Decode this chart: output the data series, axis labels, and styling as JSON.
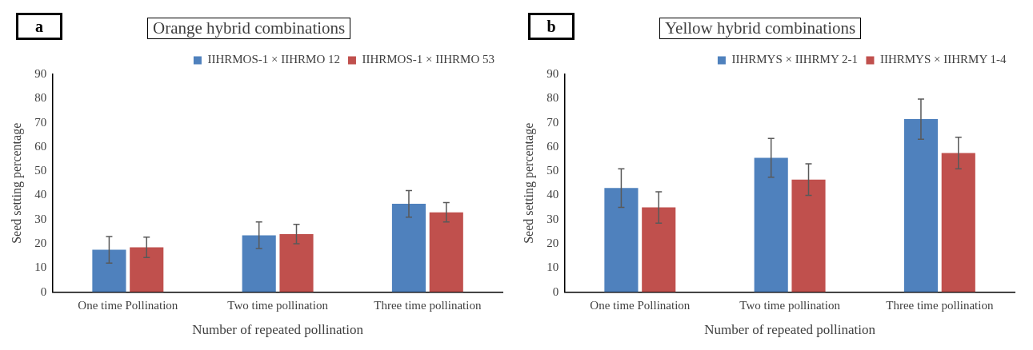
{
  "chart_data": [
    {
      "type": "bar",
      "title": "Orange hybrid combinations",
      "xlabel": "Number of repeated pollination",
      "ylabel": "Seed setting percentage",
      "annotations": [
        "a"
      ],
      "categories": [
        "One time Pollination",
        "Two time pollination",
        "Three time pollination"
      ],
      "series": [
        {
          "name": "IIHRMOS-1 × IIHRMO 12",
          "color": "#4f81bd",
          "values": [
            17.5,
            23.5,
            36.5
          ],
          "errors": [
            5.5,
            5.5,
            5.5
          ]
        },
        {
          "name": "IIHRMOS-1 × IIHRMO 53",
          "color": "#c0504d",
          "values": [
            18.5,
            24,
            33
          ],
          "errors": [
            4.2,
            4,
            4
          ]
        }
      ],
      "ylim": [
        0,
        90
      ],
      "yticks": [
        0,
        10,
        20,
        30,
        40,
        50,
        60,
        70,
        80,
        90
      ],
      "grid": false,
      "legend": "top right"
    },
    {
      "type": "bar",
      "title": "Yellow hybrid combinations",
      "xlabel": "Number of repeated pollination",
      "ylabel": "Seed setting percentage",
      "annotations": [
        "b"
      ],
      "categories": [
        "One time Pollination",
        "Two time pollination",
        "Three time pollination"
      ],
      "series": [
        {
          "name": "IIHRMYS × IIHRMY 2-1",
          "color": "#4f81bd",
          "values": [
            43,
            55.5,
            71.5
          ],
          "errors": [
            8,
            8,
            8.3
          ]
        },
        {
          "name": "IIHRMYS × IIHRMY 1-4",
          "color": "#c0504d",
          "values": [
            35,
            46.5,
            57.5
          ],
          "errors": [
            6.5,
            6.5,
            6.5
          ]
        }
      ],
      "ylim": [
        0,
        90
      ],
      "yticks": [
        0,
        10,
        20,
        30,
        40,
        50,
        60,
        70,
        80,
        90
      ],
      "grid": false,
      "legend": "top right"
    }
  ]
}
